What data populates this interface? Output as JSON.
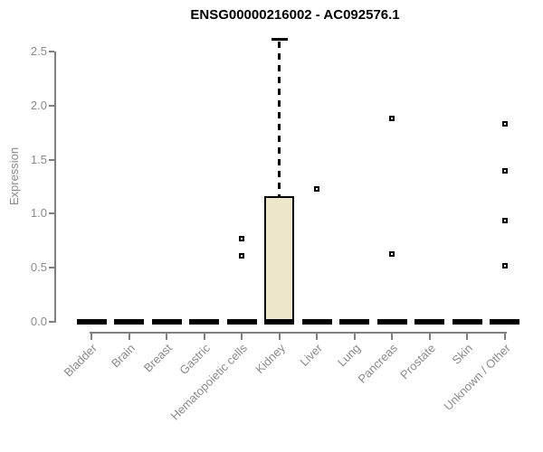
{
  "chart_data": {
    "type": "box",
    "title": "ENSG00000216002 - AC092576.1",
    "xlabel": "",
    "ylabel": "Expression",
    "ylim": [
      0,
      2.65
    ],
    "grid": false,
    "legend": "none",
    "outlier_marker": "open-square",
    "yticks": [
      {
        "value": 0.0,
        "label": "0.0"
      },
      {
        "value": 0.5,
        "label": "0.5"
      },
      {
        "value": 1.0,
        "label": "1.0"
      },
      {
        "value": 1.5,
        "label": "1.5"
      },
      {
        "value": 2.0,
        "label": "2.0"
      },
      {
        "value": 2.5,
        "label": "2.5"
      }
    ],
    "categories": [
      "Bladder",
      "Brain",
      "Breast",
      "Gastric",
      "Hematopoietic cells",
      "Kidney",
      "Liver",
      "Lung",
      "Pancreas",
      "Prostate",
      "Skin",
      "Unknown / Other"
    ],
    "boxes": [
      {
        "category": "Bladder",
        "q1": 0,
        "median": 0,
        "q3": 0,
        "whisker_low": 0,
        "whisker_high": 0,
        "outliers": []
      },
      {
        "category": "Brain",
        "q1": 0,
        "median": 0,
        "q3": 0,
        "whisker_low": 0,
        "whisker_high": 0,
        "outliers": []
      },
      {
        "category": "Breast",
        "q1": 0,
        "median": 0,
        "q3": 0,
        "whisker_low": 0,
        "whisker_high": 0,
        "outliers": []
      },
      {
        "category": "Gastric",
        "q1": 0,
        "median": 0,
        "q3": 0,
        "whisker_low": 0,
        "whisker_high": 0,
        "outliers": []
      },
      {
        "category": "Hematopoietic cells",
        "q1": 0,
        "median": 0,
        "q3": 0,
        "whisker_low": 0,
        "whisker_high": 0,
        "outliers": [
          0.77,
          0.61
        ]
      },
      {
        "category": "Kidney",
        "q1": 0,
        "median": 0,
        "q3": 1.16,
        "whisker_low": 0,
        "whisker_high": 2.62,
        "outliers": []
      },
      {
        "category": "Liver",
        "q1": 0,
        "median": 0,
        "q3": 0,
        "whisker_low": 0,
        "whisker_high": 0,
        "outliers": [
          1.23
        ]
      },
      {
        "category": "Lung",
        "q1": 0,
        "median": 0,
        "q3": 0,
        "whisker_low": 0,
        "whisker_high": 0,
        "outliers": []
      },
      {
        "category": "Pancreas",
        "q1": 0,
        "median": 0,
        "q3": 0,
        "whisker_low": 0,
        "whisker_high": 0,
        "outliers": [
          1.88,
          0.63
        ]
      },
      {
        "category": "Prostate",
        "q1": 0,
        "median": 0,
        "q3": 0,
        "whisker_low": 0,
        "whisker_high": 0,
        "outliers": []
      },
      {
        "category": "Skin",
        "q1": 0,
        "median": 0,
        "q3": 0,
        "whisker_low": 0,
        "whisker_high": 0,
        "outliers": []
      },
      {
        "category": "Unknown / Other",
        "q1": 0,
        "median": 0,
        "q3": 0,
        "whisker_low": 0,
        "whisker_high": 0,
        "outliers": [
          1.83,
          1.4,
          0.94,
          0.52
        ]
      }
    ],
    "colors": {
      "box_fill": "#ECE7CB",
      "box_border": "#000000",
      "median_line": "#000000",
      "whisker": "#000000",
      "outlier_border": "#000000",
      "outlier_fill": "#ffffff",
      "axis_line": "#808080",
      "tick_label": "#8a8a8a",
      "title": "#000000"
    }
  }
}
